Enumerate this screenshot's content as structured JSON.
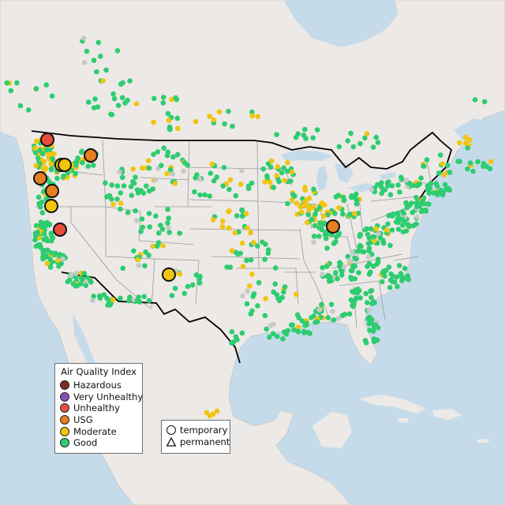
{
  "legend": {
    "title": "Air Quality Index",
    "categories": [
      {
        "label": "Hazardous",
        "color": "#7e2b25"
      },
      {
        "label": "Very Unhealthy",
        "color": "#8b4fb0"
      },
      {
        "label": "Unhealthy",
        "color": "#e84c3d"
      },
      {
        "label": "USG",
        "color": "#e67e22"
      },
      {
        "label": "Moderate",
        "color": "#f1c40f"
      },
      {
        "label": "Good",
        "color": "#2ecc71"
      }
    ],
    "no_data_color": "#c8c8c8"
  },
  "shape_legend": {
    "temporary": "temporary",
    "permanent": "permanent"
  },
  "map": {
    "region": "United States (contiguous) with southern Canada, northern Mexico, and Caribbean",
    "basemap": {
      "land": "#ece9e6",
      "water": "#c6dbea",
      "us_border": "#000000",
      "state_lines": "#9a9a9a"
    },
    "highlighted_monitors": [
      {
        "category": "Unhealthy",
        "type": "temporary",
        "region": "western Washington"
      },
      {
        "category": "Moderate",
        "type": "temporary",
        "region": "central Washington"
      },
      {
        "category": "Moderate",
        "type": "temporary",
        "region": "central Washington"
      },
      {
        "category": "USG",
        "type": "temporary",
        "region": "eastern Washington"
      },
      {
        "category": "USG",
        "type": "temporary",
        "region": "western Oregon"
      },
      {
        "category": "USG",
        "type": "temporary",
        "region": "southern Oregon"
      },
      {
        "category": "Moderate",
        "type": "temporary",
        "region": "northern California"
      },
      {
        "category": "Unhealthy",
        "type": "temporary",
        "region": "northern California"
      },
      {
        "category": "Moderate",
        "type": "temporary",
        "region": "New Mexico"
      },
      {
        "category": "USG",
        "type": "temporary",
        "region": "Illinois"
      }
    ],
    "regional_conditions": [
      {
        "region": "Pacific Northwest",
        "dominant": "Moderate"
      },
      {
        "region": "Upper Midwest / Great Lakes",
        "dominant": "Moderate"
      },
      {
        "region": "East Coast",
        "dominant": "Good"
      },
      {
        "region": "Southeast / Gulf Coast",
        "dominant": "Good"
      },
      {
        "region": "Great Plains",
        "dominant": "Good"
      },
      {
        "region": "Southwest",
        "dominant": "Good"
      }
    ]
  }
}
